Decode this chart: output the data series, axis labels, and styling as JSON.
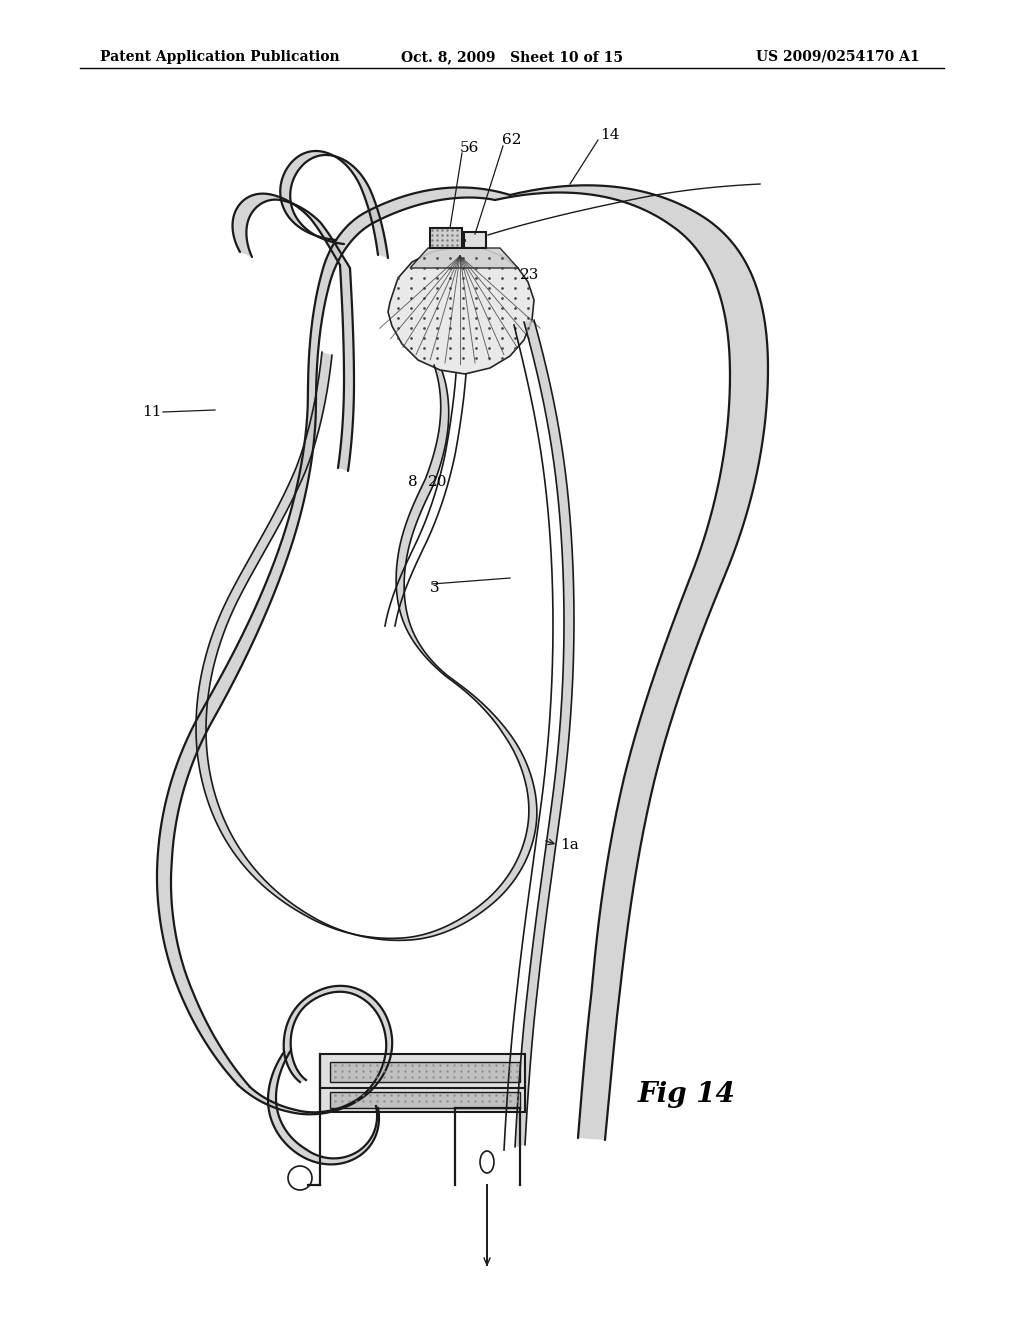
{
  "header_left": "Patent Application Publication",
  "header_mid": "Oct. 8, 2009   Sheet 10 of 15",
  "header_right": "US 2009/0254170 A1",
  "fig_label": "Fig 14",
  "bg_color": "#ffffff",
  "line_color": "#1a1a1a",
  "wall_color": "#c8c8c8",
  "wall_alpha": 0.75
}
